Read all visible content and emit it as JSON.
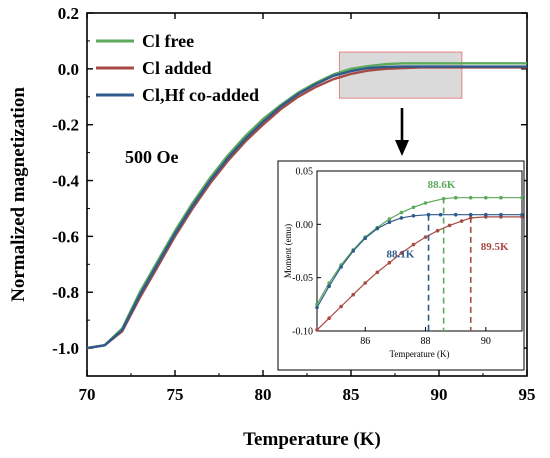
{
  "chart_data": {
    "type": "line",
    "xlabel": "Temperature (K)",
    "ylabel": "Normalized magnetization",
    "xlim": [
      70,
      95
    ],
    "ylim": [
      -1.1,
      0.2
    ],
    "xticks": [
      "70",
      "75",
      "80",
      "85",
      "90",
      "95"
    ],
    "yticks": [
      "0.2",
      "0.0",
      "-0.2",
      "-0.4",
      "-0.6",
      "-0.8",
      "-1.0"
    ],
    "annotation": "500 Oe",
    "legend": {
      "position": "top-left"
    },
    "series": [
      {
        "name": "Cl free",
        "color": "#5daa5d",
        "tc": 88.6,
        "plateau": 0.02,
        "x": [
          70,
          71,
          72,
          73,
          74,
          75,
          76,
          77,
          78,
          79,
          80,
          81,
          82,
          83,
          84,
          85,
          86,
          87,
          88,
          88.6,
          89,
          90,
          95
        ],
        "y": [
          -1.0,
          -0.99,
          -0.93,
          -0.8,
          -0.69,
          -0.58,
          -0.48,
          -0.39,
          -0.31,
          -0.24,
          -0.18,
          -0.13,
          -0.085,
          -0.05,
          -0.02,
          0.0,
          0.01,
          0.017,
          0.02,
          0.02,
          0.02,
          0.02,
          0.02
        ]
      },
      {
        "name": "Cl added",
        "color": "#a84a44",
        "tc": 89.5,
        "plateau": 0.005,
        "x": [
          70,
          71,
          72,
          73,
          74,
          75,
          76,
          77,
          78,
          79,
          80,
          81,
          82,
          83,
          84,
          85,
          86,
          87,
          88,
          89,
          89.5,
          90,
          95
        ],
        "y": [
          -1.0,
          -0.99,
          -0.94,
          -0.82,
          -0.71,
          -0.6,
          -0.5,
          -0.41,
          -0.33,
          -0.26,
          -0.2,
          -0.145,
          -0.1,
          -0.065,
          -0.037,
          -0.018,
          -0.006,
          0.0,
          0.003,
          0.005,
          0.005,
          0.005,
          0.005
        ]
      },
      {
        "name": "Cl,Hf co-added",
        "color": "#2e5a8c",
        "tc": 88.1,
        "plateau": 0.008,
        "x": [
          70,
          71,
          72,
          73,
          74,
          75,
          76,
          77,
          78,
          79,
          80,
          81,
          82,
          83,
          84,
          85,
          86,
          87,
          88,
          88.1,
          89,
          90,
          95
        ],
        "y": [
          -1.0,
          -0.99,
          -0.935,
          -0.81,
          -0.7,
          -0.59,
          -0.49,
          -0.4,
          -0.32,
          -0.25,
          -0.19,
          -0.135,
          -0.09,
          -0.055,
          -0.025,
          -0.008,
          0.003,
          0.007,
          0.008,
          0.008,
          0.008,
          0.008,
          0.008
        ]
      }
    ],
    "inset": {
      "xlabel": "Temperature (K)",
      "ylabel": "Moment (emu)",
      "xlim": [
        84.4,
        91.2
      ],
      "ylim": [
        -0.1,
        0.05
      ],
      "xticks": [
        "86",
        "88",
        "90"
      ],
      "yticks": [
        "0.05",
        "0.00",
        "-0.05",
        "-0.10"
      ],
      "tc_labels": [
        "88.6K",
        "88.1K",
        "89.5K"
      ],
      "series": [
        {
          "name": "Cl free",
          "color": "#5daa5d",
          "tc": 88.6,
          "x": [
            84.4,
            84.8,
            85.2,
            85.6,
            86.0,
            86.4,
            86.8,
            87.2,
            87.6,
            88.0,
            88.6,
            89.0,
            89.5,
            90.0,
            90.5,
            91.2
          ],
          "y": [
            -0.075,
            -0.055,
            -0.038,
            -0.024,
            -0.012,
            -0.003,
            0.005,
            0.011,
            0.016,
            0.02,
            0.024,
            0.025,
            0.025,
            0.025,
            0.025,
            0.025
          ]
        },
        {
          "name": "Cl added",
          "color": "#a84a44",
          "tc": 89.5,
          "x": [
            84.4,
            84.8,
            85.2,
            85.6,
            86.0,
            86.4,
            86.8,
            87.2,
            87.6,
            88.0,
            88.4,
            88.8,
            89.2,
            89.5,
            90.0,
            90.5,
            91.2
          ],
          "y": [
            -0.099,
            -0.088,
            -0.077,
            -0.066,
            -0.055,
            -0.045,
            -0.036,
            -0.027,
            -0.019,
            -0.012,
            -0.006,
            -0.001,
            0.003,
            0.006,
            0.007,
            0.007,
            0.007
          ]
        },
        {
          "name": "Cl,Hf co-added",
          "color": "#2e5a8c",
          "tc": 88.1,
          "x": [
            84.4,
            84.8,
            85.2,
            85.6,
            86.0,
            86.4,
            86.8,
            87.2,
            87.6,
            88.1,
            88.5,
            89.0,
            89.5,
            90.0,
            90.5,
            91.2
          ],
          "y": [
            -0.078,
            -0.058,
            -0.04,
            -0.025,
            -0.013,
            -0.004,
            0.002,
            0.006,
            0.008,
            0.009,
            0.009,
            0.009,
            0.009,
            0.009,
            0.009,
            0.009
          ]
        }
      ]
    }
  }
}
